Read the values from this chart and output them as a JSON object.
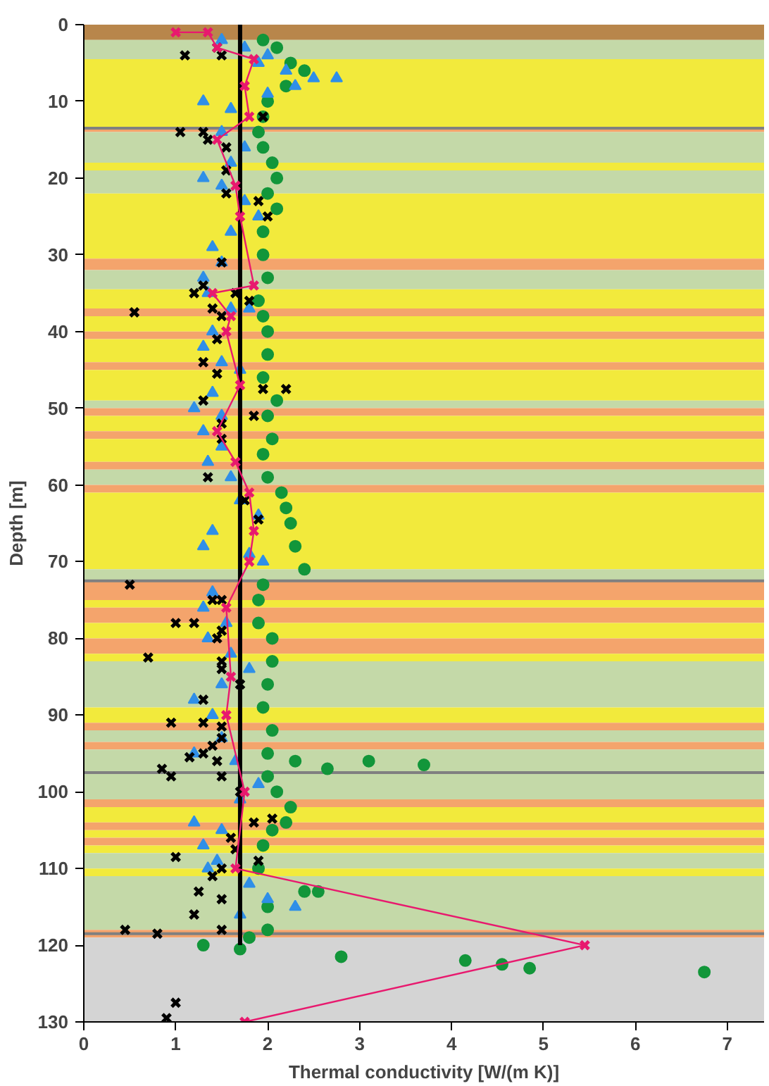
{
  "chart_data": {
    "type": "scatter",
    "xlabel": "Thermal conductivity [W/(m K)]",
    "ylabel": "Depth [m]",
    "xlim": [
      0,
      7.4
    ],
    "xticks": [
      0,
      1,
      2,
      3,
      4,
      5,
      6,
      7
    ],
    "ylim": [
      130,
      0
    ],
    "yticks": [
      0,
      10,
      20,
      30,
      40,
      50,
      60,
      70,
      80,
      90,
      100,
      110,
      120,
      130
    ],
    "grid": false,
    "bands": [
      {
        "axis": "y",
        "from": 0,
        "to": 2,
        "color": "#b8864b"
      },
      {
        "axis": "y",
        "from": 2,
        "to": 4.5,
        "color": "#c4d9a8"
      },
      {
        "axis": "y",
        "from": 4.5,
        "to": 13.5,
        "color": "#f2ea3c"
      },
      {
        "axis": "y",
        "from": 13.5,
        "to": 14,
        "color": "#f4a46c"
      },
      {
        "axis": "y",
        "from": 14,
        "to": 18,
        "color": "#c4d9a8"
      },
      {
        "axis": "y",
        "from": 18,
        "to": 19,
        "color": "#f2ea3c"
      },
      {
        "axis": "y",
        "from": 19,
        "to": 22,
        "color": "#c4d9a8"
      },
      {
        "axis": "y",
        "from": 22,
        "to": 30.5,
        "color": "#f2ea3c"
      },
      {
        "axis": "y",
        "from": 30.5,
        "to": 32,
        "color": "#f4a46c"
      },
      {
        "axis": "y",
        "from": 32,
        "to": 34.5,
        "color": "#c4d9a8"
      },
      {
        "axis": "y",
        "from": 34.5,
        "to": 37,
        "color": "#f2ea3c"
      },
      {
        "axis": "y",
        "from": 37,
        "to": 38,
        "color": "#f4a46c"
      },
      {
        "axis": "y",
        "from": 38,
        "to": 40,
        "color": "#f2ea3c"
      },
      {
        "axis": "y",
        "from": 40,
        "to": 41,
        "color": "#f4a46c"
      },
      {
        "axis": "y",
        "from": 41,
        "to": 44,
        "color": "#f2ea3c"
      },
      {
        "axis": "y",
        "from": 44,
        "to": 45,
        "color": "#f4a46c"
      },
      {
        "axis": "y",
        "from": 45,
        "to": 49,
        "color": "#f2ea3c"
      },
      {
        "axis": "y",
        "from": 49,
        "to": 50,
        "color": "#c4d9a8"
      },
      {
        "axis": "y",
        "from": 50,
        "to": 51,
        "color": "#f4a46c"
      },
      {
        "axis": "y",
        "from": 51,
        "to": 53,
        "color": "#f2ea3c"
      },
      {
        "axis": "y",
        "from": 53,
        "to": 54,
        "color": "#f4a46c"
      },
      {
        "axis": "y",
        "from": 54,
        "to": 57,
        "color": "#f2ea3c"
      },
      {
        "axis": "y",
        "from": 57,
        "to": 58,
        "color": "#f4a46c"
      },
      {
        "axis": "y",
        "from": 58,
        "to": 60,
        "color": "#c4d9a8"
      },
      {
        "axis": "y",
        "from": 60,
        "to": 61,
        "color": "#f4a46c"
      },
      {
        "axis": "y",
        "from": 61,
        "to": 71,
        "color": "#f2ea3c"
      },
      {
        "axis": "y",
        "from": 71,
        "to": 72.5,
        "color": "#c4d9a8"
      },
      {
        "axis": "y",
        "from": 72.5,
        "to": 75,
        "color": "#f4a46c"
      },
      {
        "axis": "y",
        "from": 75,
        "to": 76,
        "color": "#f2ea3c"
      },
      {
        "axis": "y",
        "from": 76,
        "to": 78,
        "color": "#f4a46c"
      },
      {
        "axis": "y",
        "from": 78,
        "to": 80,
        "color": "#f2ea3c"
      },
      {
        "axis": "y",
        "from": 80,
        "to": 82,
        "color": "#f4a46c"
      },
      {
        "axis": "y",
        "from": 82,
        "to": 83,
        "color": "#f2ea3c"
      },
      {
        "axis": "y",
        "from": 83,
        "to": 89,
        "color": "#c4d9a8"
      },
      {
        "axis": "y",
        "from": 89,
        "to": 91,
        "color": "#f2ea3c"
      },
      {
        "axis": "y",
        "from": 91,
        "to": 92,
        "color": "#f4a46c"
      },
      {
        "axis": "y",
        "from": 92,
        "to": 93.5,
        "color": "#c4d9a8"
      },
      {
        "axis": "y",
        "from": 93.5,
        "to": 94.5,
        "color": "#f4a46c"
      },
      {
        "axis": "y",
        "from": 94.5,
        "to": 101,
        "color": "#c4d9a8"
      },
      {
        "axis": "y",
        "from": 101,
        "to": 102,
        "color": "#f4a46c"
      },
      {
        "axis": "y",
        "from": 102,
        "to": 104,
        "color": "#f2ea3c"
      },
      {
        "axis": "y",
        "from": 104,
        "to": 105,
        "color": "#f4a46c"
      },
      {
        "axis": "y",
        "from": 105,
        "to": 106,
        "color": "#f2ea3c"
      },
      {
        "axis": "y",
        "from": 106,
        "to": 107,
        "color": "#f4a46c"
      },
      {
        "axis": "y",
        "from": 107,
        "to": 108,
        "color": "#f2ea3c"
      },
      {
        "axis": "y",
        "from": 108,
        "to": 110,
        "color": "#c4d9a8"
      },
      {
        "axis": "y",
        "from": 110,
        "to": 111,
        "color": "#f2ea3c"
      },
      {
        "axis": "y",
        "from": 111,
        "to": 118,
        "color": "#c4d9a8"
      },
      {
        "axis": "y",
        "from": 118,
        "to": 119,
        "color": "#f4a46c"
      },
      {
        "axis": "y",
        "from": 119,
        "to": 130,
        "color": "#d4d4d4"
      }
    ],
    "ref_lines": [
      {
        "axis": "y",
        "value": 13.5,
        "color": "#808080"
      },
      {
        "axis": "y",
        "value": 72.5,
        "color": "#808080"
      },
      {
        "axis": "y",
        "value": 97.5,
        "color": "#808080"
      },
      {
        "axis": "y",
        "value": 118.5,
        "color": "#808080"
      }
    ],
    "series": [
      {
        "marker": "circle",
        "color": "#12963a",
        "x": [
          1.95,
          2.1,
          2.25,
          2.4,
          2.2,
          2.0,
          1.95,
          1.9,
          1.95,
          2.05,
          2.1,
          2.0,
          2.1,
          1.95,
          1.95,
          2.0,
          1.9,
          1.95,
          2.0,
          2.0,
          1.95,
          2.1,
          2.0,
          2.05,
          1.95,
          2.0,
          2.15,
          2.2,
          2.25,
          2.3,
          2.4,
          1.95,
          1.9,
          1.9,
          2.05,
          2.05,
          2.0,
          1.95,
          2.05,
          2.0,
          2.3,
          3.1,
          3.7,
          2.65,
          2.0,
          2.1,
          2.25,
          2.2,
          2.05,
          1.95,
          1.9,
          2.4,
          2.55,
          2.0,
          2.0,
          1.8,
          1.3,
          1.7,
          2.8,
          4.15,
          4.55,
          4.85,
          6.75
        ],
        "values": [
          2,
          3,
          5,
          6,
          8,
          10,
          12,
          14,
          16,
          18,
          20,
          22,
          24,
          27,
          30,
          33,
          36,
          38,
          40,
          43,
          46,
          49,
          51,
          54,
          56,
          59,
          61,
          63,
          65,
          68,
          71,
          73,
          75,
          78,
          80,
          83,
          86,
          89,
          92,
          95,
          96,
          96,
          96.5,
          97,
          98,
          100,
          102,
          104,
          105,
          107,
          110,
          113,
          113,
          115,
          118,
          119,
          120,
          120.5,
          121.5,
          122,
          122.5,
          123,
          123.5
        ]
      },
      {
        "marker": "triangle",
        "color": "#2f8fe8",
        "x": [
          1.5,
          1.75,
          2.0,
          1.9,
          2.2,
          2.5,
          2.75,
          2.3,
          2.0,
          1.3,
          1.6,
          1.5,
          1.75,
          1.6,
          1.3,
          1.5,
          1.75,
          1.9,
          1.6,
          1.4,
          1.5,
          1.3,
          1.35,
          1.6,
          1.8,
          1.4,
          1.3,
          1.5,
          1.7,
          1.4,
          1.2,
          1.5,
          1.3,
          1.5,
          1.35,
          1.6,
          1.7,
          1.9,
          1.4,
          1.3,
          1.8,
          1.95,
          1.4,
          1.3,
          1.55,
          1.35,
          1.6,
          1.8,
          1.5,
          1.2,
          1.4,
          1.5,
          1.2,
          1.65,
          1.9,
          1.7,
          1.2,
          1.5,
          1.3,
          1.45,
          1.35,
          1.8,
          2.0,
          2.3,
          1.7
        ],
        "values": [
          2,
          3,
          4,
          5,
          6,
          7,
          7,
          8,
          9,
          10,
          11,
          14,
          16,
          18,
          20,
          21,
          23,
          25,
          27,
          29,
          31,
          33,
          35,
          37,
          37,
          40,
          42,
          44,
          45,
          48,
          50,
          51,
          53,
          55,
          57,
          59,
          62,
          64,
          66,
          68,
          69,
          70,
          74,
          76,
          78,
          80,
          82,
          84,
          86,
          88,
          90,
          93,
          95,
          96,
          99,
          101,
          104,
          105,
          107,
          109,
          110,
          112,
          114,
          115,
          116
        ]
      },
      {
        "marker": "x",
        "color": "#000000",
        "x": [
          1.45,
          1.5,
          1.1,
          1.95,
          1.05,
          1.3,
          1.35,
          1.55,
          1.55,
          1.9,
          1.55,
          2.0,
          1.5,
          1.2,
          1.3,
          1.65,
          1.8,
          0.55,
          1.4,
          1.5,
          1.45,
          1.3,
          1.45,
          1.95,
          2.2,
          1.3,
          1.85,
          1.5,
          1.5,
          1.35,
          1.75,
          1.9,
          0.5,
          1.4,
          1.5,
          1.0,
          1.2,
          1.5,
          0.7,
          1.45,
          1.5,
          1.5,
          1.7,
          1.3,
          0.95,
          1.3,
          1.5,
          1.4,
          1.3,
          1.15,
          1.45,
          1.5,
          0.85,
          0.95,
          1.5,
          1.7,
          1.85,
          2.05,
          1.6,
          1.65,
          1.0,
          1.9,
          1.5,
          1.4,
          1.25,
          1.5,
          1.2,
          0.45,
          0.8,
          1.5,
          1.0,
          0.9
        ],
        "values": [
          3,
          4,
          4,
          12,
          14,
          14,
          15,
          16,
          19,
          23,
          22,
          25,
          31,
          35,
          34,
          35,
          36,
          37.5,
          37,
          38,
          41,
          44,
          45.5,
          47.5,
          47.5,
          49,
          51,
          52,
          54,
          59,
          62,
          64.5,
          73,
          75,
          75,
          78,
          78,
          79,
          82.5,
          80,
          83,
          84,
          86,
          88,
          91,
          91,
          91.5,
          94,
          95,
          95.5,
          96,
          93,
          97,
          98,
          98,
          100,
          104,
          103.5,
          106,
          107.5,
          108.5,
          109,
          110,
          111,
          113,
          114,
          116,
          118,
          118.5,
          118,
          127.5,
          129.5
        ]
      },
      {
        "type": "line",
        "marker": "none",
        "line_style": "solid",
        "color": "#000000",
        "x": [
          1.7,
          1.7
        ],
        "values": [
          0,
          120
        ]
      },
      {
        "type": "line",
        "marker": "x",
        "line_style": "solid",
        "color": "#e8196e",
        "x": [
          1.0,
          1.35,
          1.45,
          1.85,
          1.75,
          1.8,
          1.45,
          1.65,
          1.7,
          1.85,
          1.4,
          1.6,
          1.55,
          1.7,
          1.45,
          1.65,
          1.8,
          1.85,
          1.8,
          1.55,
          1.6,
          1.55,
          1.75,
          1.65,
          5.45,
          1.75
        ],
        "values": [
          1,
          1,
          3,
          4.5,
          8,
          12,
          15,
          21,
          25,
          34,
          35,
          38,
          40,
          47,
          53,
          57,
          61,
          66,
          70,
          76,
          85,
          90,
          100,
          110,
          120,
          130
        ]
      }
    ]
  }
}
